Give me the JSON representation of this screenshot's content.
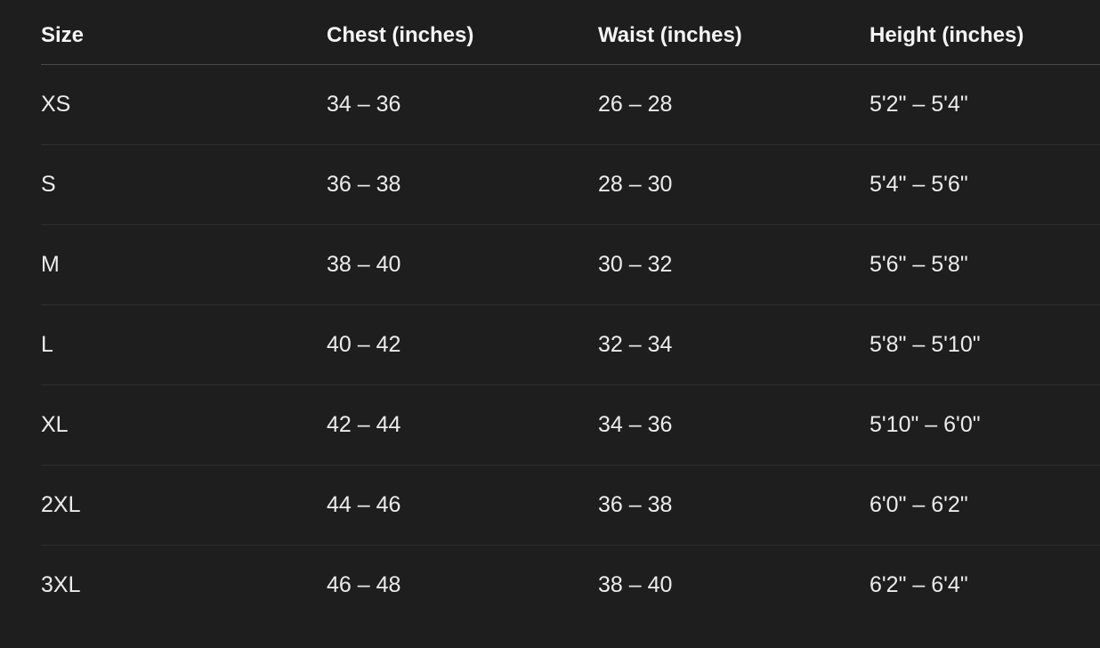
{
  "table": {
    "headers": [
      "Size",
      "Chest (inches)",
      "Waist (inches)",
      "Height (inches)"
    ],
    "rows": [
      [
        "XS",
        "34 – 36",
        "26 – 28",
        "5'2\" – 5'4\""
      ],
      [
        "S",
        "36 – 38",
        "28 – 30",
        "5'4\" – 5'6\""
      ],
      [
        "M",
        "38 – 40",
        "30 – 32",
        "5'6\" – 5'8\""
      ],
      [
        "L",
        "40 – 42",
        "32 – 34",
        "5'8\" – 5'10\""
      ],
      [
        "XL",
        "42 – 44",
        "34 – 36",
        "5'10\" – 6'0\""
      ],
      [
        "2XL",
        "44 – 46",
        "36 – 38",
        "6'0\" – 6'2\""
      ],
      [
        "3XL",
        "46 – 48",
        "38 – 40",
        "6'2\" – 6'4\""
      ]
    ]
  }
}
